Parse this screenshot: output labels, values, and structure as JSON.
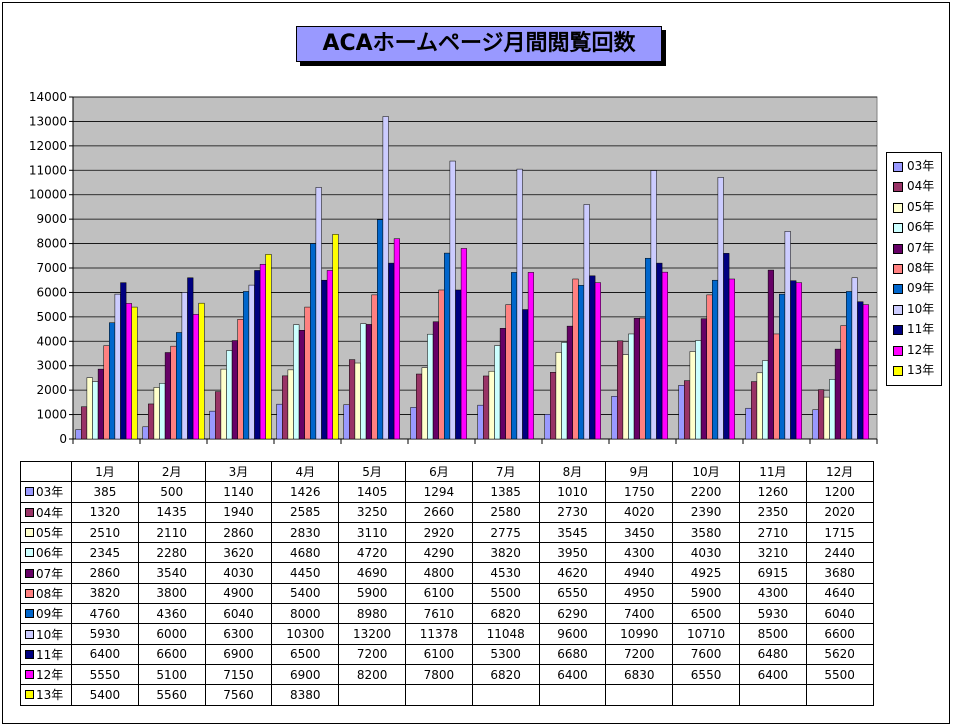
{
  "chart_data": {
    "type": "bar",
    "title": "ACAホームページ月間閲覧回数",
    "categories": [
      "1月",
      "2月",
      "3月",
      "4月",
      "5月",
      "6月",
      "7月",
      "8月",
      "9月",
      "10月",
      "11月",
      "12月"
    ],
    "ylim": [
      0,
      14000
    ],
    "yticks": [
      0,
      1000,
      2000,
      3000,
      4000,
      5000,
      6000,
      7000,
      8000,
      9000,
      10000,
      11000,
      12000,
      13000,
      14000
    ],
    "grid": true,
    "legend_position": "right",
    "series": [
      {
        "name": "03年",
        "color": "#9999ff",
        "values": [
          385,
          500,
          1140,
          1426,
          1405,
          1294,
          1385,
          1010,
          1750,
          2200,
          1260,
          1200
        ]
      },
      {
        "name": "04年",
        "color": "#993366",
        "values": [
          1320,
          1435,
          1940,
          2585,
          3250,
          2660,
          2580,
          2730,
          4020,
          2390,
          2350,
          2020
        ]
      },
      {
        "name": "05年",
        "color": "#ffffcc",
        "values": [
          2510,
          2110,
          2860,
          2830,
          3110,
          2920,
          2775,
          3545,
          3450,
          3580,
          2710,
          1715
        ]
      },
      {
        "name": "06年",
        "color": "#ccffff",
        "values": [
          2345,
          2280,
          3620,
          4680,
          4720,
          4290,
          3820,
          3950,
          4300,
          4030,
          3210,
          2440
        ]
      },
      {
        "name": "07年",
        "color": "#660066",
        "values": [
          2860,
          3540,
          4030,
          4450,
          4690,
          4800,
          4530,
          4620,
          4940,
          4925,
          6915,
          3680
        ]
      },
      {
        "name": "08年",
        "color": "#ff8080",
        "values": [
          3820,
          3800,
          4900,
          5400,
          5900,
          6100,
          5500,
          6550,
          4950,
          5900,
          4300,
          4640
        ]
      },
      {
        "name": "09年",
        "color": "#0066cc",
        "values": [
          4760,
          4360,
          6040,
          8000,
          8980,
          7610,
          6820,
          6290,
          7400,
          6500,
          5930,
          6040
        ]
      },
      {
        "name": "10年",
        "color": "#ccccff",
        "values": [
          5930,
          6000,
          6300,
          10300,
          13200,
          11378,
          11048,
          9600,
          10990,
          10710,
          8500,
          6600
        ]
      },
      {
        "name": "11年",
        "color": "#000080",
        "values": [
          6400,
          6600,
          6900,
          6500,
          7200,
          6100,
          5300,
          6680,
          7200,
          7600,
          6480,
          5620
        ]
      },
      {
        "name": "12年",
        "color": "#ff00ff",
        "values": [
          5550,
          5100,
          7150,
          6900,
          8200,
          7800,
          6820,
          6400,
          6830,
          6550,
          6400,
          5500
        ]
      },
      {
        "name": "13年",
        "color": "#ffff00",
        "values": [
          5400,
          5560,
          7560,
          8380,
          null,
          null,
          null,
          null,
          null,
          null,
          null,
          null
        ]
      }
    ]
  }
}
